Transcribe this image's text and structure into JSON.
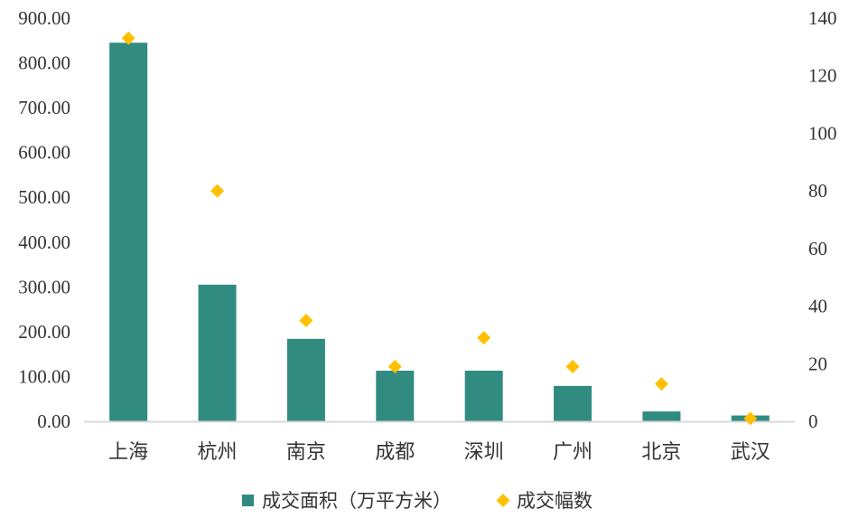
{
  "chart_data": {
    "type": "bar",
    "categories": [
      "上海",
      "杭州",
      "南京",
      "成都",
      "深圳",
      "广州",
      "北京",
      "武汉"
    ],
    "series": [
      {
        "name": "成交面积（万平方米）",
        "type": "bar",
        "axis": "left",
        "color": "#318b80",
        "values": [
          845,
          305,
          184,
          113,
          113,
          79,
          22,
          13
        ]
      },
      {
        "name": "成交幅数",
        "type": "scatter",
        "marker": "diamond",
        "axis": "right",
        "color": "#ffc000",
        "values": [
          133,
          80,
          35,
          19,
          29,
          19,
          13,
          1
        ]
      }
    ],
    "y_left": {
      "range": [
        0,
        900
      ],
      "ticks": [
        "0.00",
        "100.00",
        "200.00",
        "300.00",
        "400.00",
        "500.00",
        "600.00",
        "700.00",
        "800.00",
        "900.00"
      ]
    },
    "y_right": {
      "range": [
        0,
        140
      ],
      "ticks": [
        "0",
        "20",
        "40",
        "60",
        "80",
        "100",
        "120",
        "140"
      ]
    },
    "grid": false,
    "legend_position": "bottom"
  }
}
